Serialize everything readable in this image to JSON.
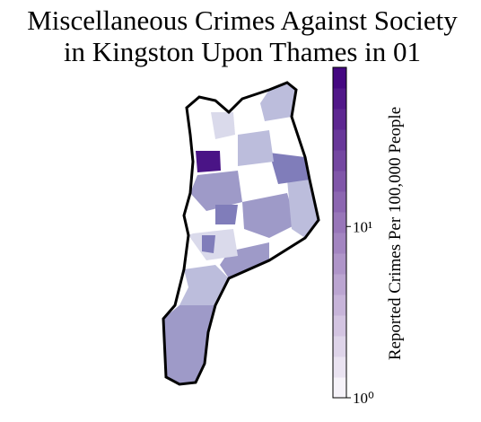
{
  "title_lines": [
    "Miscellaneous Crimes Against Society",
    "in Kingston Upon Thames in 01"
  ],
  "colorbar": {
    "label": "Reported Crimes Per 100,000 People",
    "scale": "log",
    "lim": [
      1,
      85
    ],
    "ticks": [
      {
        "value": 1,
        "label": "10⁰"
      },
      {
        "value": 10,
        "label": "10¹"
      }
    ],
    "colors": [
      "#fcfbfd",
      "#3f007d"
    ]
  }
}
